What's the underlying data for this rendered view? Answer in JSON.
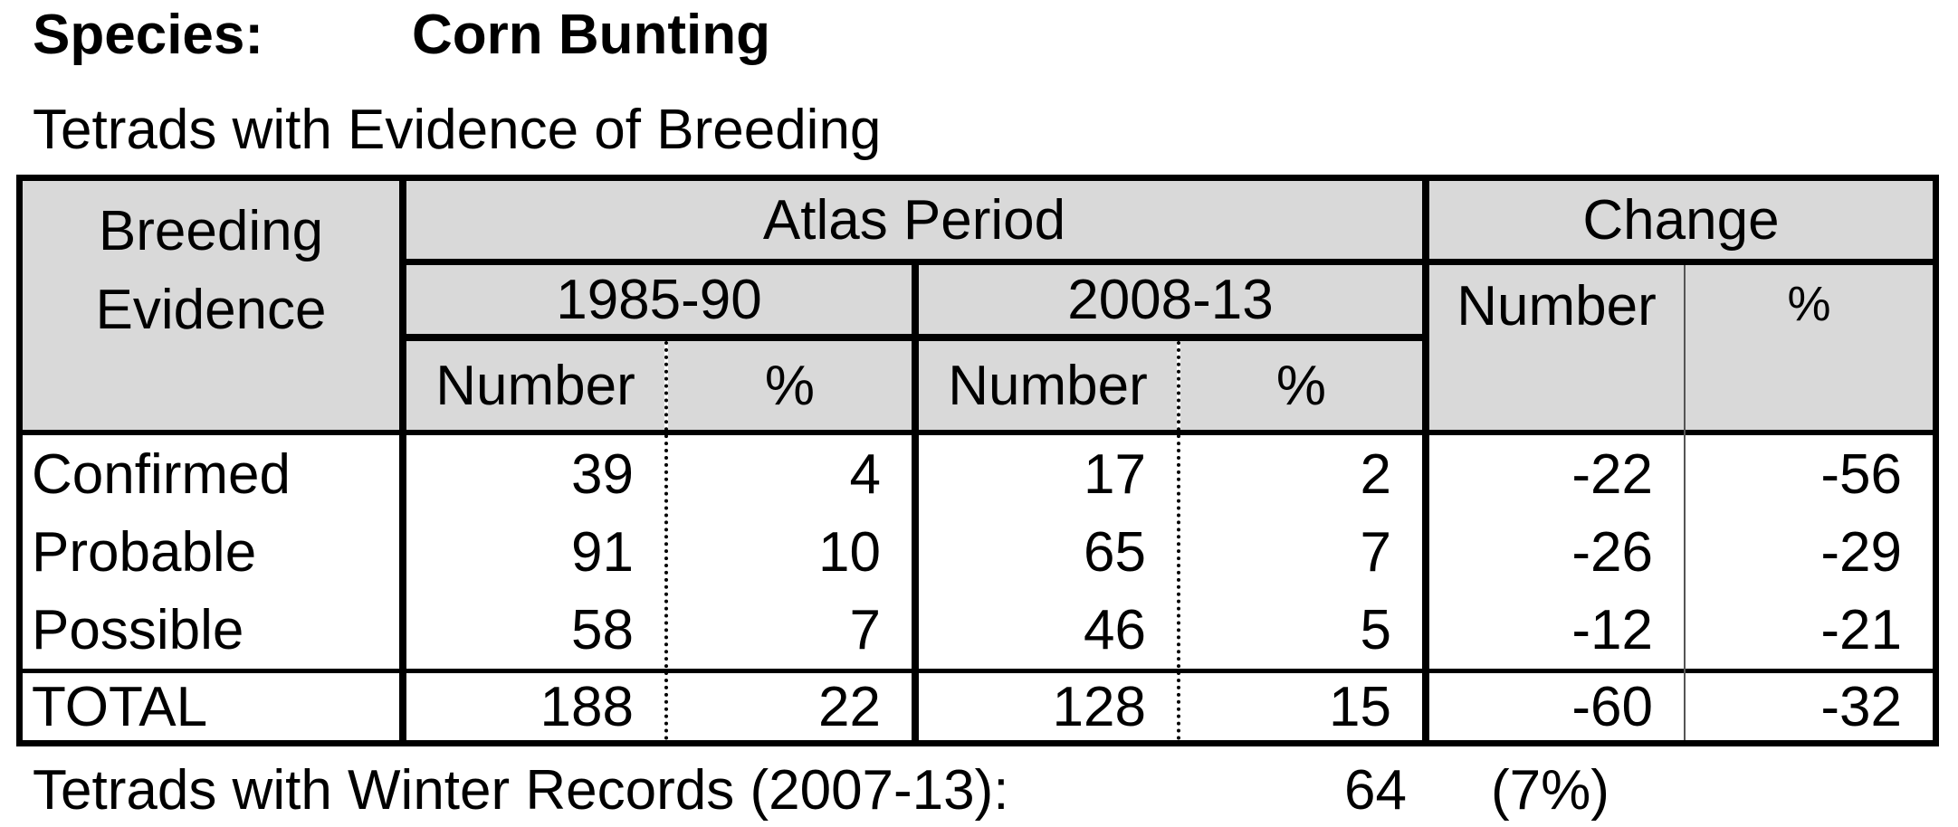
{
  "header": {
    "species_label": "Species:",
    "species_name": "Corn Bunting",
    "subtitle": "Tetrads with Evidence of Breeding"
  },
  "table": {
    "col_evidence_line1": "Breeding",
    "col_evidence_line2": "Evidence",
    "atlas_period": "Atlas Period",
    "change": "Change",
    "period1": "1985-90",
    "period2": "2008-13",
    "number": "Number",
    "percent": "%",
    "rows": [
      {
        "label": "Confirmed",
        "n1": "39",
        "p1": "4",
        "n2": "17",
        "p2": "2",
        "cn": "-22",
        "cp": "-56"
      },
      {
        "label": "Probable",
        "n1": "91",
        "p1": "10",
        "n2": "65",
        "p2": "7",
        "cn": "-26",
        "cp": "-29"
      },
      {
        "label": "Possible",
        "n1": "58",
        "p1": "7",
        "n2": "46",
        "p2": "5",
        "cn": "-12",
        "cp": "-21"
      },
      {
        "label": "TOTAL",
        "n1": "188",
        "p1": "22",
        "n2": "128",
        "p2": "15",
        "cn": "-60",
        "cp": "-32"
      }
    ]
  },
  "footer": {
    "label": "Tetrads with Winter Records (2007-13):",
    "count": "64",
    "percent": "(7%)"
  }
}
